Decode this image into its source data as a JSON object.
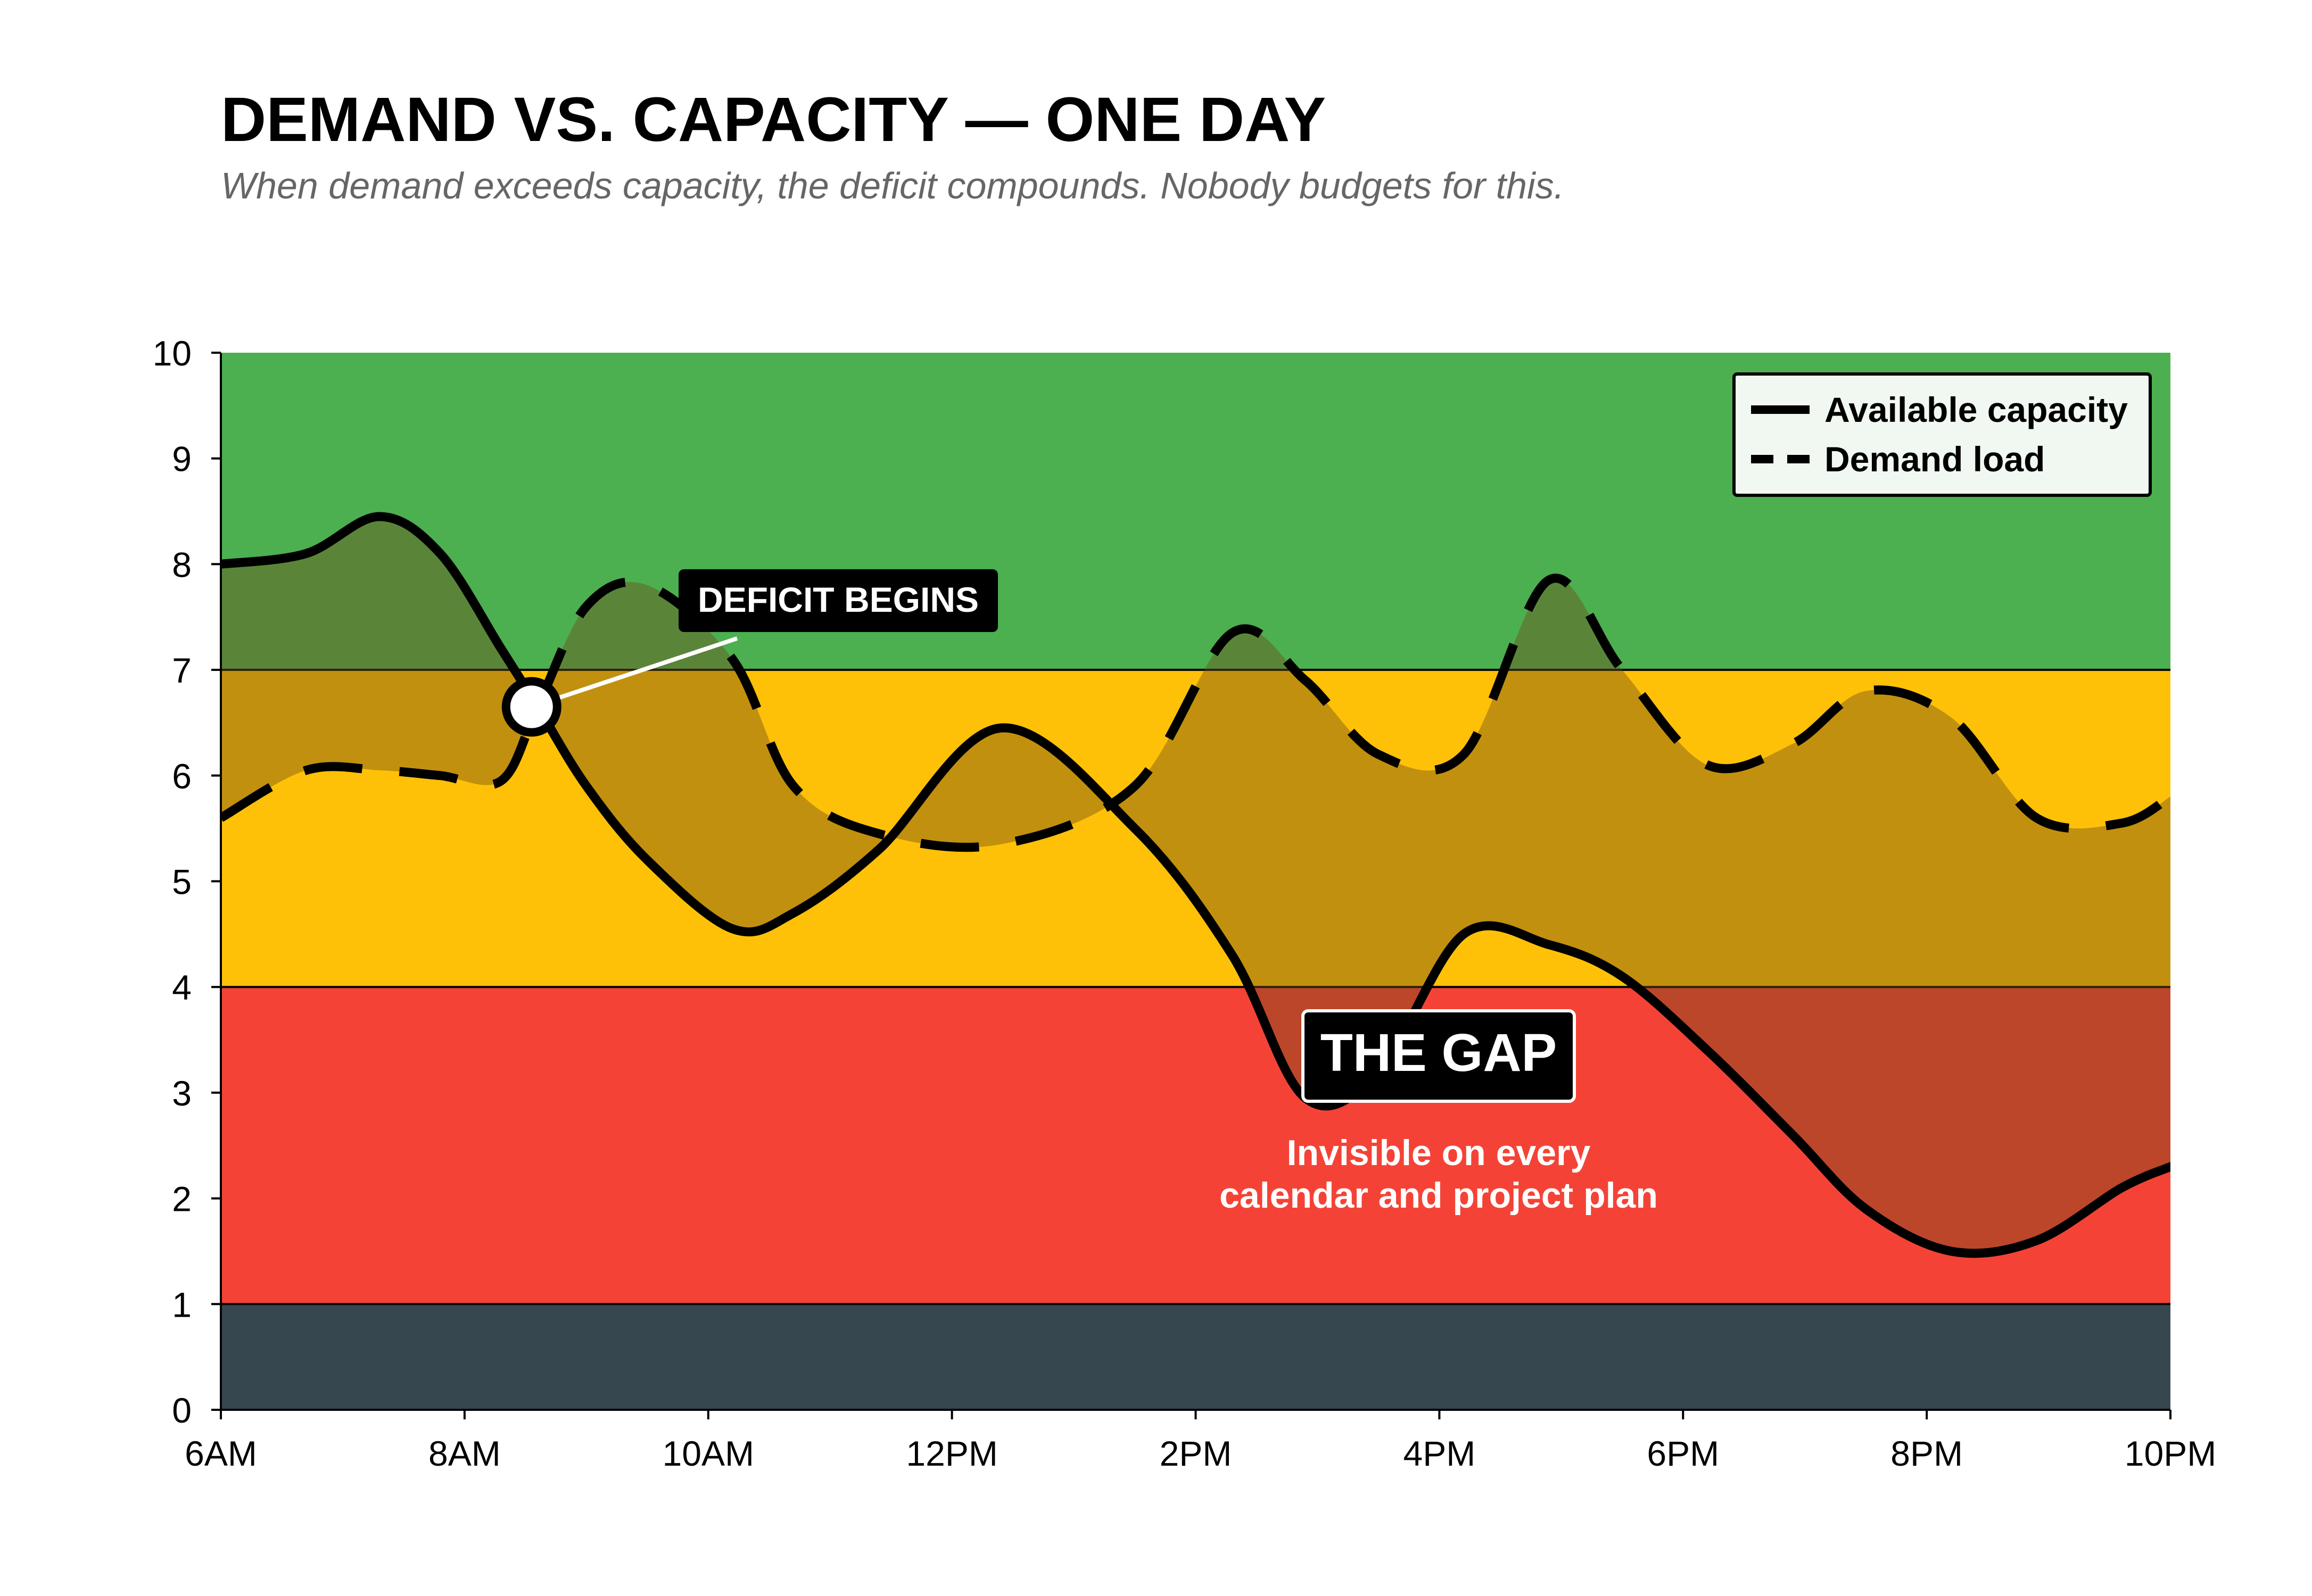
{
  "title": "DEMAND VS.  CAPACITY — ONE DAY",
  "subtitle": "When demand exceeds capacity, the deficit compounds. Nobody budgets for this.",
  "colors": {
    "zone_green": "#4caf50",
    "zone_yellow": "#ffc107",
    "zone_red": "#f44336",
    "zone_dark": "#37474f",
    "gap_fill": "#6d4c1a",
    "line": "#000000"
  },
  "chart_data": {
    "type": "line",
    "x_hours": [
      6,
      6.7,
      7.3,
      7.8,
      8.3,
      8.6,
      9,
      9.5,
      10.2,
      10.7,
      11.4,
      12.4,
      13.5,
      14.3,
      14.9,
      15.5,
      16.2,
      16.9,
      17.5,
      18.2,
      18.9,
      19.5,
      20.2,
      20.9,
      21.6,
      22
    ],
    "series": [
      {
        "name": "Available capacity",
        "style": "solid",
        "values": [
          8.0,
          8.1,
          8.45,
          8.1,
          7.2,
          6.65,
          5.9,
          5.2,
          4.55,
          4.7,
          5.3,
          6.45,
          5.5,
          4.3,
          2.95,
          3.2,
          4.5,
          4.4,
          4.1,
          3.4,
          2.6,
          1.9,
          1.5,
          1.6,
          2.1,
          2.3
        ]
      },
      {
        "name": "Demand load",
        "style": "dashed",
        "values": [
          5.6,
          6.05,
          6.05,
          6.0,
          5.95,
          6.65,
          7.6,
          7.8,
          7.1,
          5.9,
          5.45,
          5.35,
          5.9,
          7.35,
          6.9,
          6.2,
          6.2,
          7.85,
          7.0,
          6.1,
          6.3,
          6.8,
          6.55,
          5.6,
          5.55,
          5.8
        ]
      }
    ],
    "x_tick_labels": [
      "6AM",
      "8AM",
      "10AM",
      "12PM",
      "2PM",
      "4PM",
      "6PM",
      "8PM",
      "10PM"
    ],
    "xlim": [
      6,
      22
    ],
    "ylim": [
      0,
      10
    ],
    "y_ticks": [
      0,
      1,
      2,
      3,
      4,
      5,
      6,
      7,
      8,
      9,
      10
    ],
    "bands": [
      {
        "from": 7,
        "to": 10,
        "color": "#4caf50"
      },
      {
        "from": 4,
        "to": 7,
        "color": "#ffc107"
      },
      {
        "from": 1,
        "to": 4,
        "color": "#f44336"
      },
      {
        "from": 0,
        "to": 1,
        "color": "#37474f"
      }
    ],
    "legend_position": "top-right",
    "grid": false,
    "annotations": {
      "deficit_begins": {
        "label": "DEFICIT BEGINS",
        "x": 8.55,
        "y": 6.65
      },
      "the_gap": {
        "label": "THE GAP",
        "caption": [
          "Invisible on every",
          "calendar and project plan"
        ]
      }
    }
  }
}
